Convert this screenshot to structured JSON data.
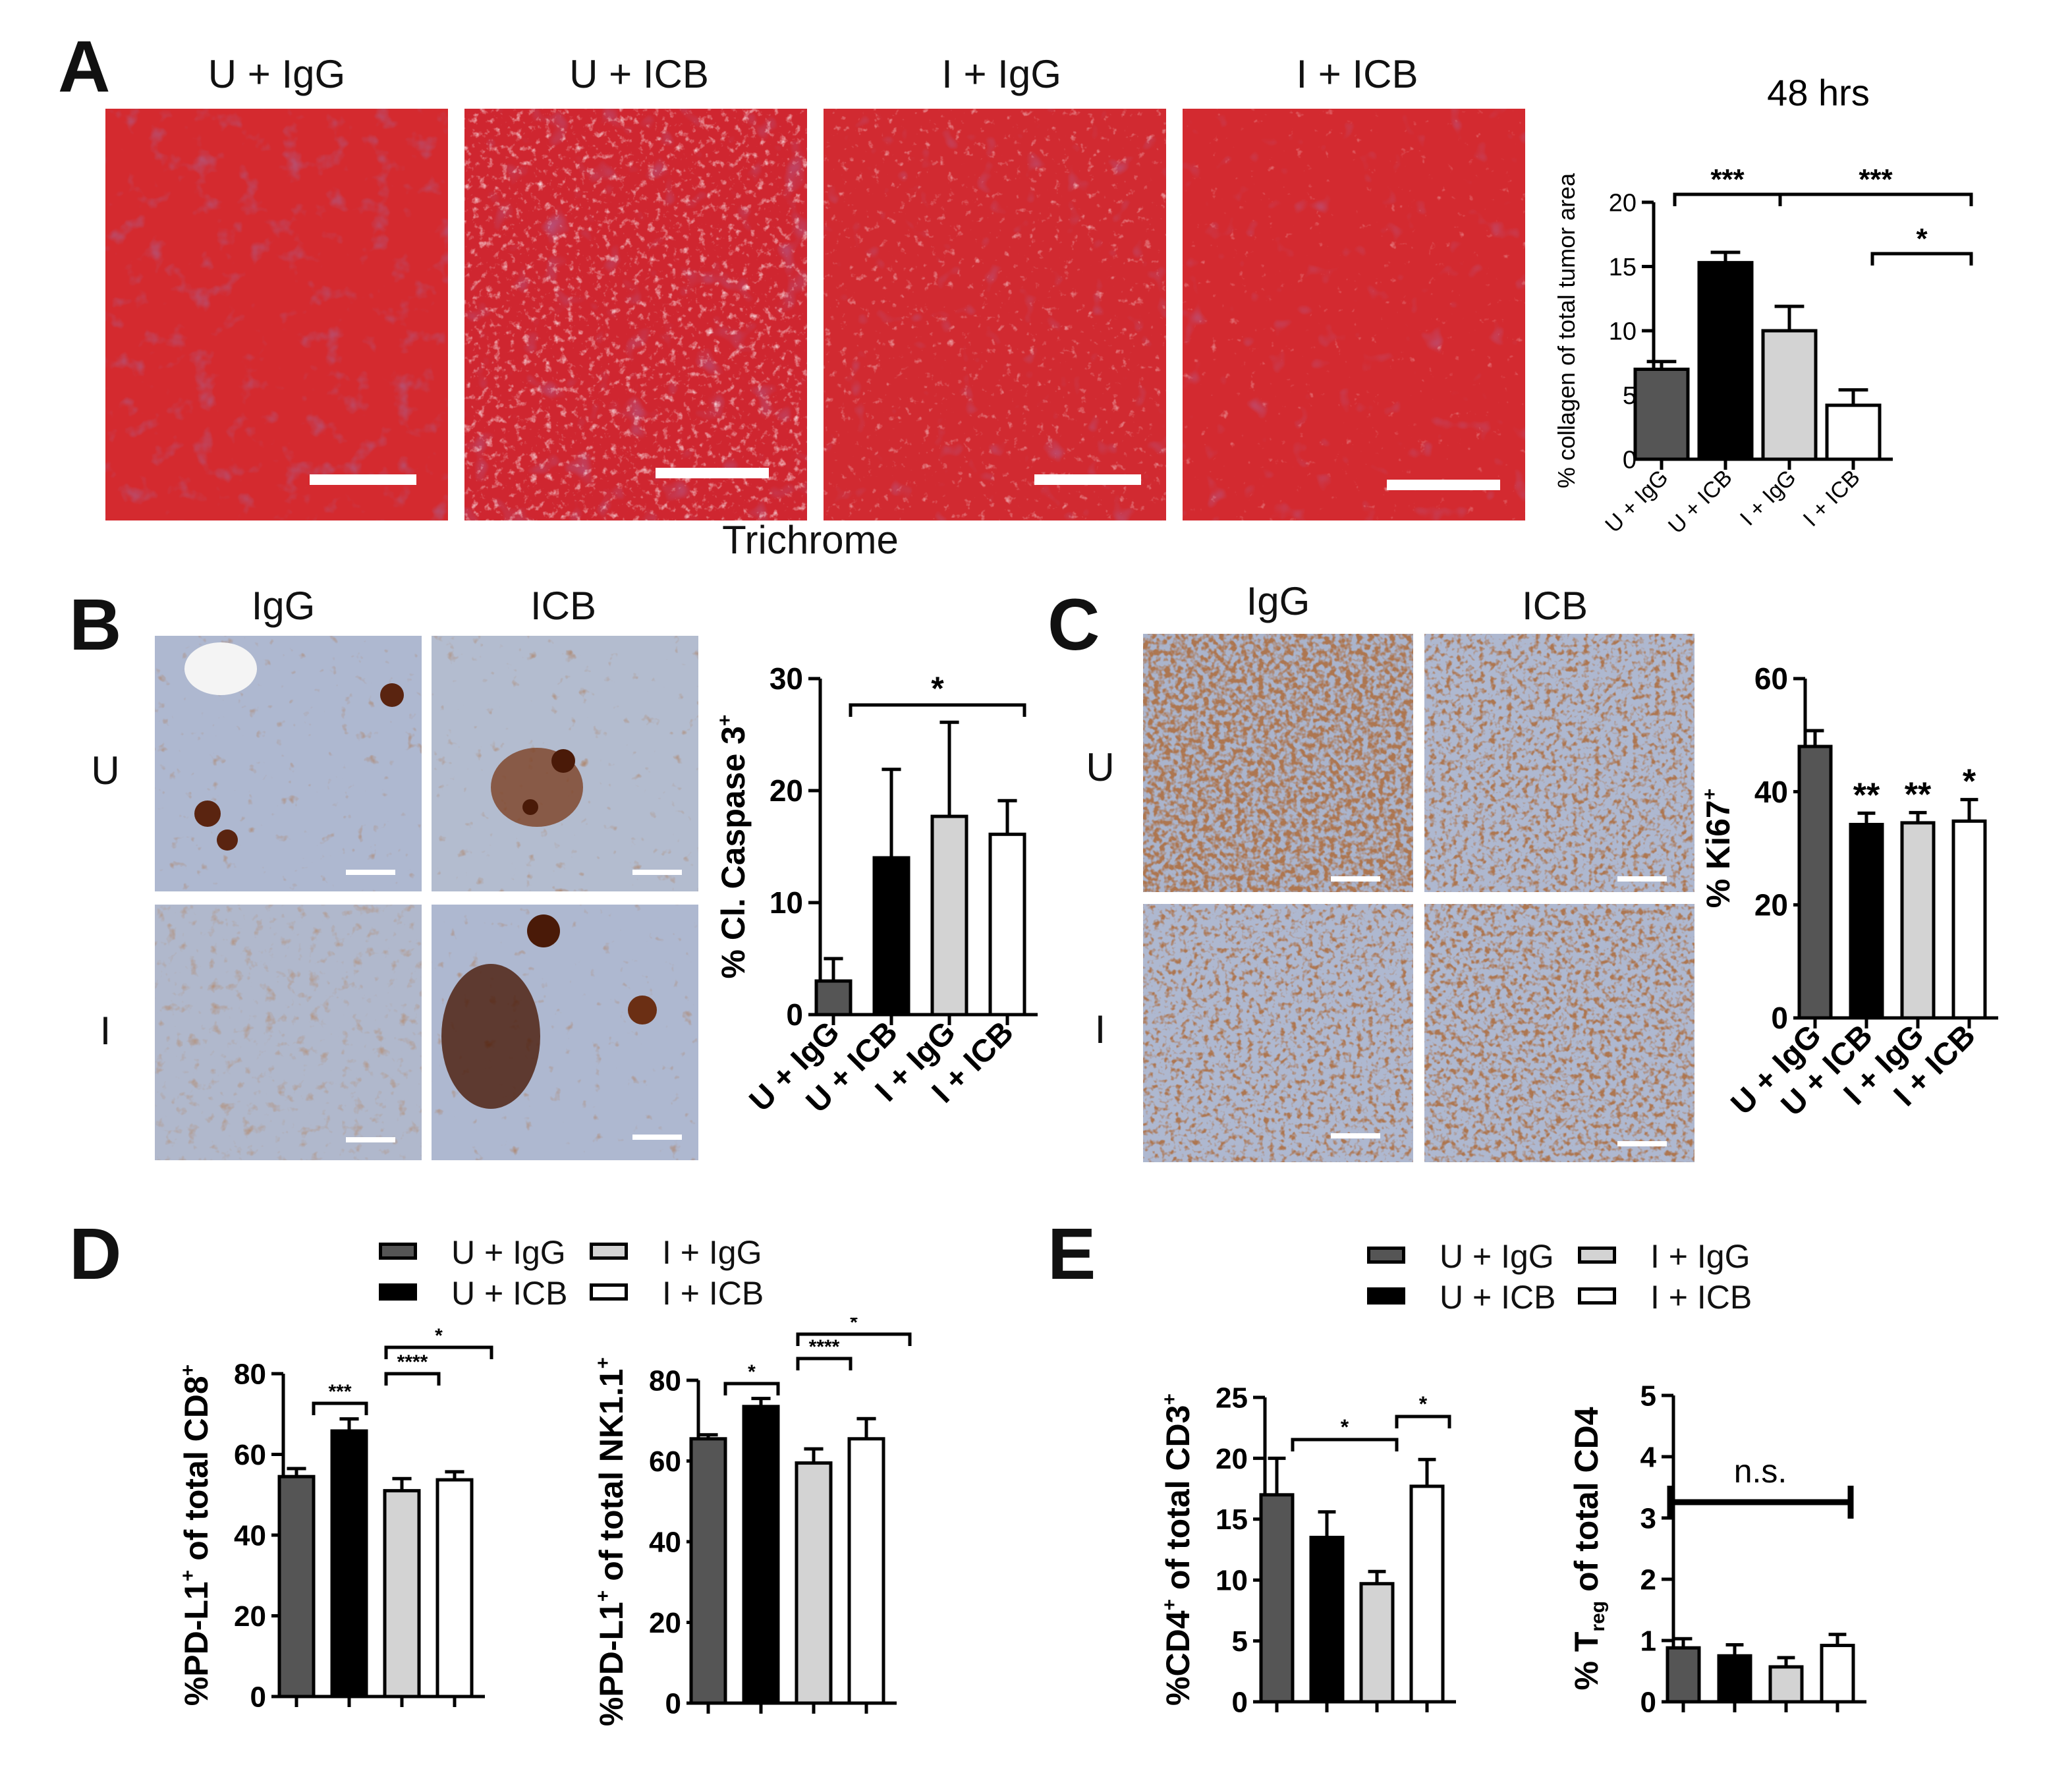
{
  "panels": {
    "A": {
      "letter": "A",
      "image_labels": [
        "U + IgG",
        "U + ICB",
        "I + IgG",
        "I + ICB"
      ],
      "stain_label": "Trichrome",
      "chart_title": "48 hrs"
    },
    "B": {
      "letter": "B",
      "col_labels": [
        "IgG",
        "ICB"
      ],
      "row_labels": [
        "U",
        "I"
      ]
    },
    "C": {
      "letter": "C",
      "col_labels": [
        "IgG",
        "ICB"
      ],
      "row_labels": [
        "U",
        "I"
      ]
    },
    "D": {
      "letter": "D"
    },
    "E": {
      "letter": "E"
    }
  },
  "legend_entries": [
    {
      "label": "U + IgG",
      "color": "#555555"
    },
    {
      "label": "U + ICB",
      "color": "#000000"
    },
    {
      "label": "I + IgG",
      "color": "#d3d3d3"
    },
    {
      "label": "I + ICB",
      "color": "#ffffff"
    }
  ],
  "colors": {
    "U_IgG": "#555555",
    "U_ICB": "#000000",
    "I_IgG": "#d3d3d3",
    "I_ICB": "#ffffff",
    "trichrome": "#d42a2f",
    "ihc_background": "#aeb8d0",
    "ihc_positive": "#6b2f14"
  },
  "chart_data": [
    {
      "id": "A-collagen",
      "type": "bar",
      "title": "48 hrs",
      "ylabel": "% collagen of total tumor area",
      "categories": [
        "U + IgG",
        "U + ICB",
        "I + IgG",
        "I + ICB"
      ],
      "values": [
        7,
        15.3,
        10,
        4.2
      ],
      "errors": [
        0.6,
        0.8,
        1.9,
        1.2
      ],
      "ylim": [
        0,
        20
      ],
      "yticks": [
        0,
        5,
        10,
        15,
        20
      ],
      "significance": [
        {
          "from": 0,
          "to": 1,
          "label": "***"
        },
        {
          "from": 1,
          "to": 3,
          "label": "***"
        },
        {
          "from": 2,
          "to": 3,
          "label": "*"
        }
      ]
    },
    {
      "id": "B-caspase",
      "type": "bar",
      "ylabel": "% Cl. Caspase 3",
      "ylabel_sup": "+",
      "categories": [
        "U + IgG",
        "U + ICB",
        "I + IgG",
        "I + ICB"
      ],
      "values": [
        3,
        14,
        17.7,
        16.1
      ],
      "errors": [
        2,
        7.9,
        8.4,
        3
      ],
      "ylim": [
        0,
        30
      ],
      "yticks": [
        0,
        10,
        20,
        30
      ],
      "significance": [
        {
          "from": 0,
          "to": 3,
          "label": "*"
        }
      ]
    },
    {
      "id": "C-ki67",
      "type": "bar",
      "ylabel": "% Ki67",
      "ylabel_sup": "+",
      "categories": [
        "U + IgG",
        "U + ICB",
        "I + IgG",
        "I + ICB"
      ],
      "values": [
        48,
        34.2,
        34.5,
        34.8
      ],
      "errors": [
        2.8,
        2,
        1.8,
        3.8
      ],
      "ylim": [
        0,
        60
      ],
      "yticks": [
        0,
        20,
        40,
        60
      ],
      "bar_labels": [
        "",
        "**",
        "**",
        "*"
      ]
    },
    {
      "id": "D-cd8",
      "type": "bar",
      "ylabel": "%PD-L1 of total CD8",
      "categories": [
        "U + IgG",
        "U + ICB",
        "I + IgG",
        "I + ICB"
      ],
      "values": [
        54.5,
        65.8,
        51,
        53.7
      ],
      "errors": [
        2,
        3,
        3,
        2
      ],
      "ylim": [
        0,
        80
      ],
      "yticks": [
        0,
        20,
        40,
        60,
        80
      ],
      "significance": [
        {
          "from": 0,
          "to": 1,
          "label": "***"
        },
        {
          "from": 1,
          "to": 2,
          "label": "****"
        },
        {
          "from": 1,
          "to": 3,
          "label": "*"
        }
      ]
    },
    {
      "id": "D-nk",
      "type": "bar",
      "ylabel": "%PD-L1 of total NK1.1",
      "categories": [
        "U + IgG",
        "U + ICB",
        "I + IgG",
        "I + ICB"
      ],
      "values": [
        65.5,
        73.5,
        59.5,
        65.5
      ],
      "errors": [
        1,
        2,
        3.5,
        5
      ],
      "ylim": [
        0,
        80
      ],
      "yticks": [
        0,
        20,
        40,
        60,
        80
      ],
      "significance": [
        {
          "from": 0,
          "to": 1,
          "label": "*"
        },
        {
          "from": 1,
          "to": 2,
          "label": "****"
        },
        {
          "from": 1,
          "to": 3,
          "label": "*"
        }
      ]
    },
    {
      "id": "E-cd4",
      "type": "bar",
      "ylabel": "%CD4 of total CD3",
      "categories": [
        "U + IgG",
        "U + ICB",
        "I + IgG",
        "I + ICB"
      ],
      "values": [
        17,
        13.5,
        9.7,
        17.7
      ],
      "errors": [
        3,
        2.1,
        1,
        2.2
      ],
      "ylim": [
        0,
        25
      ],
      "yticks": [
        0,
        5,
        10,
        15,
        20,
        25
      ],
      "significance": [
        {
          "from": 0,
          "to": 2,
          "label": "*"
        },
        {
          "from": 2,
          "to": 3,
          "label": "*"
        }
      ]
    },
    {
      "id": "E-treg",
      "type": "bar",
      "ylabel": "% T",
      "ylabel_sub": "reg",
      "ylabel_rest": " of total CD4",
      "categories": [
        "U + IgG",
        "U + ICB",
        "I + IgG",
        "I + ICB"
      ],
      "values": [
        0.88,
        0.75,
        0.57,
        0.92
      ],
      "errors": [
        0.15,
        0.18,
        0.15,
        0.18
      ],
      "ylim": [
        0,
        5
      ],
      "yticks": [
        0,
        1,
        2,
        3,
        4,
        5
      ],
      "ns_label": "n.s."
    }
  ]
}
